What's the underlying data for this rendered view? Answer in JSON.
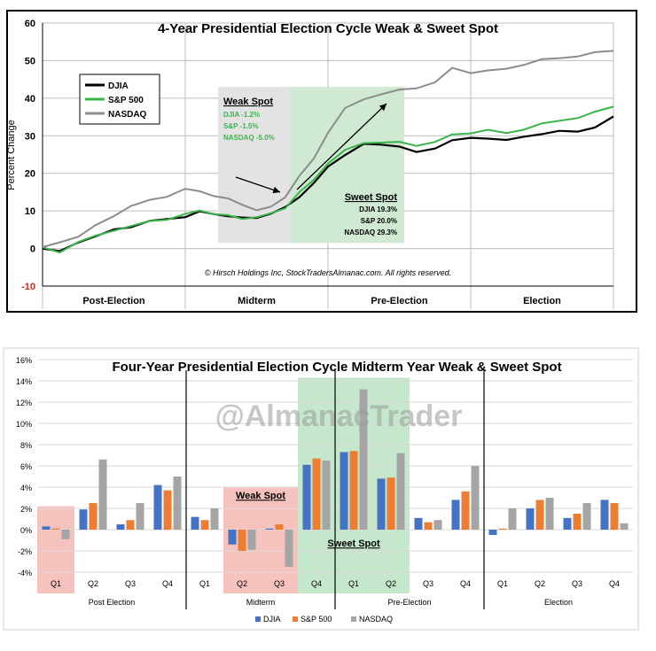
{
  "chart_data": [
    {
      "type": "line",
      "title": "4-Year Presidential Election Cycle Weak & Sweet Spot",
      "xlabel": "",
      "ylabel": "Percent Change",
      "ylim": [
        -10,
        60
      ],
      "yticks": [
        "60",
        "50",
        "40",
        "30",
        "20",
        "10",
        "0",
        "-10"
      ],
      "grid": true,
      "legend_position": "top-left",
      "categories": [
        "Post-Election",
        "Midterm",
        "Pre-Election",
        "Election"
      ],
      "series": [
        {
          "name": "DJIA",
          "color": "#000000",
          "x": [
            0,
            0.12,
            0.25,
            0.37,
            0.5,
            0.62,
            0.75,
            0.87,
            1.0,
            1.1,
            1.2,
            1.3,
            1.4,
            1.5,
            1.6,
            1.7,
            1.8,
            1.9,
            2.0,
            2.12,
            2.25,
            2.37,
            2.5,
            2.62,
            2.75,
            2.87,
            3.0,
            3.12,
            3.25,
            3.37,
            3.5,
            3.62,
            3.75,
            3.87,
            4.0
          ],
          "y": [
            0,
            -1,
            2,
            3,
            5,
            6,
            7,
            8,
            8.5,
            9.5,
            9.5,
            8.5,
            8,
            8.5,
            9,
            11,
            14,
            17,
            22,
            25,
            27.5,
            28,
            27,
            25.5,
            27,
            28.5,
            29.5,
            29.5,
            28.5,
            30,
            30.5,
            31,
            31.5,
            32,
            35
          ]
        },
        {
          "name": "S&P 500",
          "color": "#3cb44b",
          "x": [
            0,
            0.12,
            0.25,
            0.37,
            0.5,
            0.62,
            0.75,
            0.87,
            1.0,
            1.1,
            1.2,
            1.3,
            1.4,
            1.5,
            1.6,
            1.7,
            1.8,
            1.9,
            2.0,
            2.12,
            2.25,
            2.37,
            2.5,
            2.62,
            2.75,
            2.87,
            3.0,
            3.12,
            3.25,
            3.37,
            3.5,
            3.62,
            3.75,
            3.87,
            4.0
          ],
          "y": [
            0,
            -1,
            2,
            3,
            5,
            6,
            7,
            8,
            9,
            10,
            9.5,
            8.5,
            8,
            8.5,
            9,
            11,
            15,
            18,
            23,
            26,
            28,
            28.5,
            28,
            27.5,
            28.5,
            30,
            31,
            31.5,
            30.5,
            32,
            33,
            34,
            35,
            36,
            38
          ]
        },
        {
          "name": "NASDAQ",
          "color": "#8c8c8c",
          "x": [
            0,
            0.12,
            0.25,
            0.37,
            0.5,
            0.62,
            0.75,
            0.87,
            1.0,
            1.1,
            1.2,
            1.3,
            1.4,
            1.5,
            1.6,
            1.7,
            1.8,
            1.9,
            2.0,
            2.12,
            2.25,
            2.37,
            2.5,
            2.62,
            2.75,
            2.87,
            3.0,
            3.12,
            3.25,
            3.37,
            3.5,
            3.62,
            3.75,
            3.87,
            4.0
          ],
          "y": [
            0,
            2,
            3,
            6,
            9,
            11,
            13,
            14,
            15.5,
            15.5,
            14,
            13,
            12,
            10,
            11,
            14,
            19,
            24,
            31,
            37,
            40,
            41,
            42,
            43,
            44,
            48,
            47,
            47,
            48,
            49,
            50,
            51,
            51,
            52,
            53
          ]
        }
      ],
      "annotations": {
        "weak_spot": {
          "title": "Weak Spot",
          "lines": [
            "DJIA -1.2%",
            "S&P -1.5%",
            "NASDAQ -5.0%"
          ]
        },
        "sweet_spot": {
          "title": "Sweet Spot",
          "lines": [
            "DJIA 19.3%",
            "S&P 20.0%",
            "NASDAQ 29.3%"
          ]
        },
        "copyright": "© Hirsch Holdings Inc, StockTradersAlmanac.com. All rights reserved."
      }
    },
    {
      "type": "bar",
      "title": "Four-Year Presidential Election Cycle Midterm Year Weak & Sweet Spot",
      "watermark": "@AlmanacTrader",
      "xlabel": "",
      "ylabel": "",
      "ylim": [
        -4,
        16
      ],
      "yticks": [
        "16%",
        "14%",
        "12%",
        "10%",
        "8%",
        "6%",
        "4%",
        "2%",
        "0%",
        "-2%",
        "-4%"
      ],
      "grid": true,
      "legend_position": "bottom",
      "categories": [
        "Q1",
        "Q2",
        "Q3",
        "Q4",
        "Q1",
        "Q2",
        "Q3",
        "Q4",
        "Q1",
        "Q2",
        "Q3",
        "Q4",
        "Q1",
        "Q2",
        "Q3",
        "Q4"
      ],
      "groups": [
        "Post Election",
        "Midterm",
        "Pre-Election",
        "Election"
      ],
      "series": [
        {
          "name": "DJIA",
          "color": "#4472c4",
          "values": [
            0.3,
            1.9,
            0.5,
            4.2,
            1.2,
            -1.4,
            0.1,
            6.1,
            7.3,
            4.8,
            1.1,
            2.8,
            -0.5,
            2.0,
            1.1,
            2.8
          ]
        },
        {
          "name": "S&P 500",
          "color": "#ed7d31",
          "values": [
            0.1,
            2.5,
            0.9,
            3.7,
            0.9,
            -2.0,
            0.5,
            6.7,
            7.4,
            4.9,
            0.7,
            3.6,
            0.1,
            2.8,
            1.5,
            2.5
          ]
        },
        {
          "name": "NASDAQ",
          "color": "#a5a5a5",
          "values": [
            -0.9,
            6.6,
            2.5,
            5.0,
            2.0,
            -1.9,
            -3.5,
            6.5,
            13.2,
            7.2,
            0.9,
            6.0,
            2.0,
            3.0,
            2.5,
            0.6
          ]
        }
      ],
      "annotations": {
        "weak_spot": "Weak Spot",
        "sweet_spot": "Sweet Spot"
      }
    }
  ]
}
